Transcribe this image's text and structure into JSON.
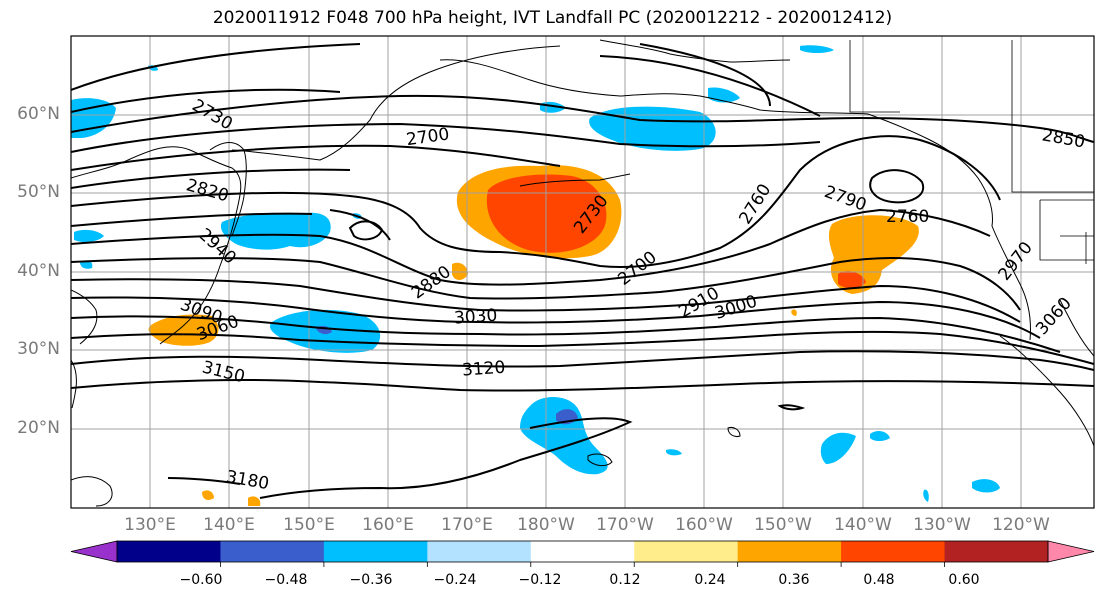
{
  "title": "2020011912 F048 700 hPa height, IVT Landfall PC (2020012212 - 2020012412)",
  "lat_labels": [
    "60°N",
    "50°N",
    "40°N",
    "30°N",
    "20°N"
  ],
  "lon_labels": [
    "130°E",
    "140°E",
    "150°E",
    "160°E",
    "170°E",
    "180°W",
    "170°W",
    "160°W",
    "150°W",
    "140°W",
    "130°W",
    "120°W"
  ],
  "colorbar": {
    "ticks": [
      "−0.60",
      "−0.48",
      "−0.36",
      "−0.24",
      "−0.12",
      "0.12",
      "0.24",
      "0.36",
      "0.48",
      "0.60"
    ],
    "colors": [
      "#9932cc",
      "#00008b",
      "#3a5fcd",
      "#00bfff",
      "#b2e2ff",
      "#ffffff",
      "#ffec8b",
      "#ffa500",
      "#ff4500",
      "#b22222",
      "#ff88aa"
    ]
  },
  "contour_labels": [
    "2730",
    "2700",
    "2820",
    "2940",
    "3090",
    "3060",
    "2880",
    "2730",
    "2760",
    "2700",
    "2910",
    "3000",
    "3030",
    "2790",
    "2760",
    "2850",
    "2970",
    "3060",
    "3120",
    "3150",
    "3180"
  ]
}
